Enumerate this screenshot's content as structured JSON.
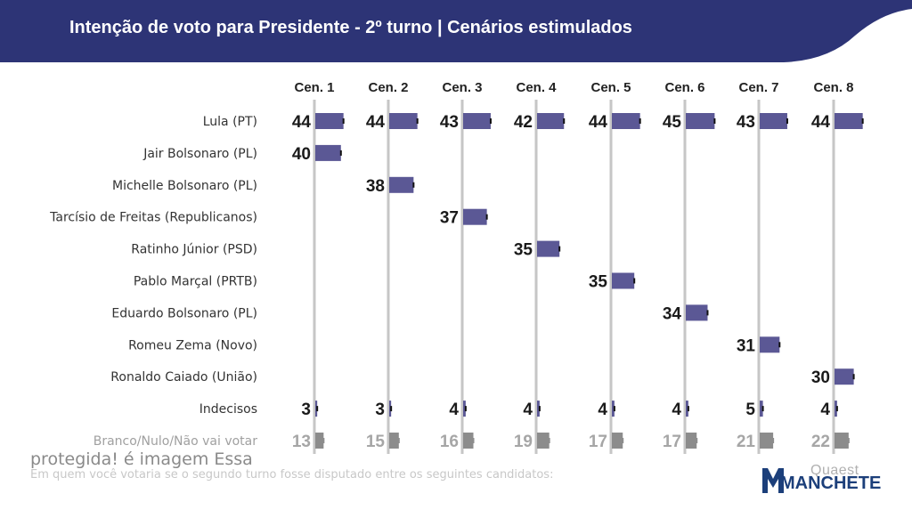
{
  "header": {
    "title": "Intenção de voto para Presidente - 2º turno | Cenários estimulados"
  },
  "colors": {
    "header_bg": "#2d3476",
    "bar": "#5b5895",
    "bar_muted": "#8c8c8c",
    "gridline": "#c6c6c6"
  },
  "chart_data": {
    "type": "bar",
    "orientation": "horizontal",
    "title": "Intenção de voto para Presidente - 2º turno | Cenários estimulados",
    "categories": [
      "Cen. 1",
      "Cen. 2",
      "Cen. 3",
      "Cen. 4",
      "Cen. 5",
      "Cen. 6",
      "Cen. 7",
      "Cen. 8"
    ],
    "rows": [
      {
        "name": "Lula (PT)",
        "values": [
          44,
          44,
          43,
          42,
          44,
          45,
          43,
          44
        ]
      },
      {
        "name": "Jair Bolsonaro (PL)",
        "values": [
          40,
          null,
          null,
          null,
          null,
          null,
          null,
          null
        ]
      },
      {
        "name": "Michelle Bolsonaro (PL)",
        "values": [
          null,
          38,
          null,
          null,
          null,
          null,
          null,
          null
        ]
      },
      {
        "name": "Tarcísio de Freitas (Republicanos)",
        "values": [
          null,
          null,
          37,
          null,
          null,
          null,
          null,
          null
        ]
      },
      {
        "name": "Ratinho Júnior (PSD)",
        "values": [
          null,
          null,
          null,
          35,
          null,
          null,
          null,
          null
        ]
      },
      {
        "name": "Pablo Marçal (PRTB)",
        "values": [
          null,
          null,
          null,
          null,
          35,
          null,
          null,
          null
        ]
      },
      {
        "name": "Eduardo Bolsonaro (PL)",
        "values": [
          null,
          null,
          null,
          null,
          null,
          34,
          null,
          null
        ]
      },
      {
        "name": "Romeu Zema (Novo)",
        "values": [
          null,
          null,
          null,
          null,
          null,
          null,
          31,
          null
        ]
      },
      {
        "name": "Ronaldo Caiado (União)",
        "values": [
          null,
          null,
          null,
          null,
          null,
          null,
          null,
          30
        ]
      },
      {
        "name": "Indecisos",
        "values": [
          3,
          3,
          4,
          4,
          4,
          4,
          5,
          4
        ]
      },
      {
        "name": "Branco/Nulo/Não vai votar",
        "values": [
          13,
          15,
          16,
          19,
          17,
          17,
          21,
          22
        ],
        "muted": true
      }
    ]
  },
  "watermark_text": "protegida! é imagem Essa",
  "footnote": "Em quem você votaria se o segundo turno fosse disputado entre os seguintes candidatos:",
  "logo": {
    "small": "Quaest",
    "big": "MANCHETE"
  }
}
